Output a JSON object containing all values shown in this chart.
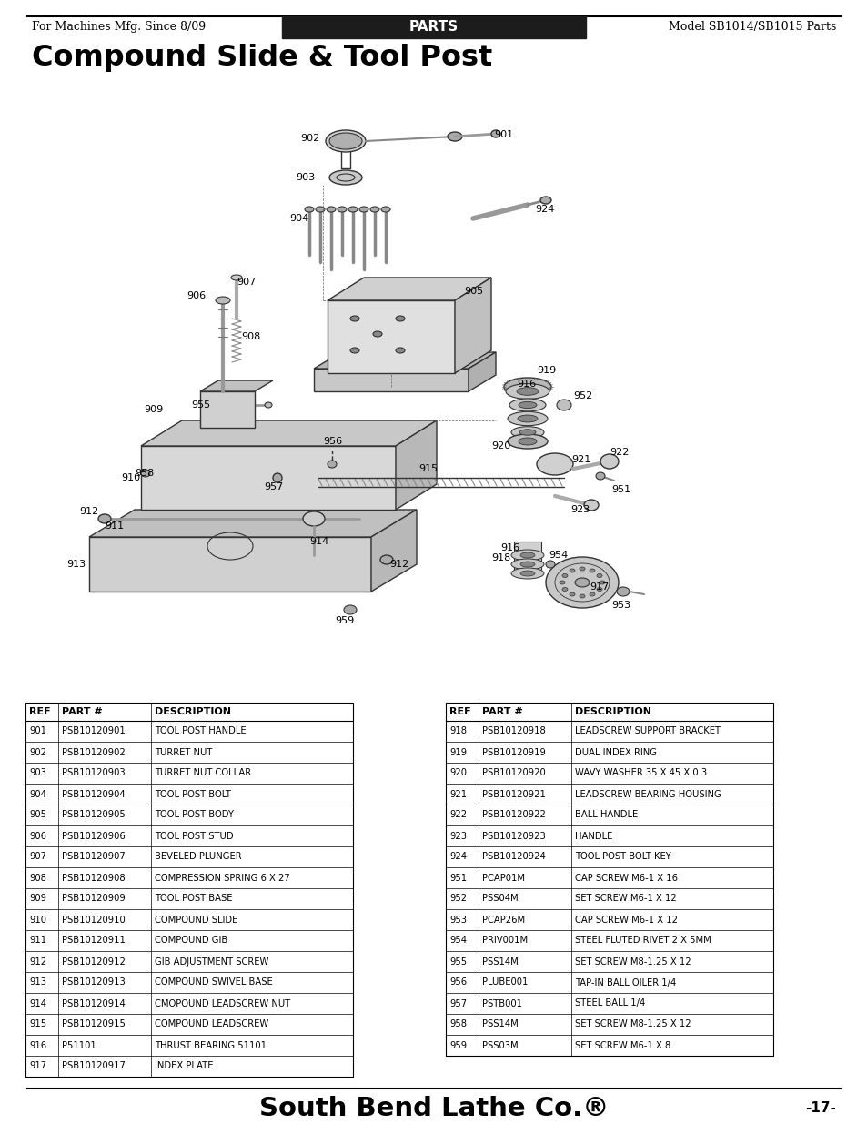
{
  "header_left": "For Machines Mfg. Since 8/09",
  "header_center": "PARTS",
  "header_right": "Model SB1014/SB1015 Parts",
  "title": "Compound Slide & Tool Post",
  "footer_center": "South Bend Lathe Co.®",
  "footer_right": "-17-",
  "col_headers": [
    "REF",
    "PART #",
    "DESCRIPTION"
  ],
  "table_left": [
    [
      "901",
      "PSB10120901",
      "TOOL POST HANDLE"
    ],
    [
      "902",
      "PSB10120902",
      "TURRET NUT"
    ],
    [
      "903",
      "PSB10120903",
      "TURRET NUT COLLAR"
    ],
    [
      "904",
      "PSB10120904",
      "TOOL POST BOLT"
    ],
    [
      "905",
      "PSB10120905",
      "TOOL POST BODY"
    ],
    [
      "906",
      "PSB10120906",
      "TOOL POST STUD"
    ],
    [
      "907",
      "PSB10120907",
      "BEVELED PLUNGER"
    ],
    [
      "908",
      "PSB10120908",
      "COMPRESSION SPRING 6 X 27"
    ],
    [
      "909",
      "PSB10120909",
      "TOOL POST BASE"
    ],
    [
      "910",
      "PSB10120910",
      "COMPOUND SLIDE"
    ],
    [
      "911",
      "PSB10120911",
      "COMPOUND GIB"
    ],
    [
      "912",
      "PSB10120912",
      "GIB ADJUSTMENT SCREW"
    ],
    [
      "913",
      "PSB10120913",
      "COMPOUND SWIVEL BASE"
    ],
    [
      "914",
      "PSB10120914",
      "CMOPOUND LEADSCREW NUT"
    ],
    [
      "915",
      "PSB10120915",
      "COMPOUND LEADSCREW"
    ],
    [
      "916",
      "P51101",
      "THRUST BEARING 51101"
    ],
    [
      "917",
      "PSB10120917",
      "INDEX PLATE"
    ]
  ],
  "table_right": [
    [
      "918",
      "PSB10120918",
      "LEADSCREW SUPPORT BRACKET"
    ],
    [
      "919",
      "PSB10120919",
      "DUAL INDEX RING"
    ],
    [
      "920",
      "PSB10120920",
      "WAVY WASHER 35 X 45 X 0.3"
    ],
    [
      "921",
      "PSB10120921",
      "LEADSCREW BEARING HOUSING"
    ],
    [
      "922",
      "PSB10120922",
      "BALL HANDLE"
    ],
    [
      "923",
      "PSB10120923",
      "HANDLE"
    ],
    [
      "924",
      "PSB10120924",
      "TOOL POST BOLT KEY"
    ],
    [
      "951",
      "PCAP01M",
      "CAP SCREW M6-1 X 16"
    ],
    [
      "952",
      "PSS04M",
      "SET SCREW M6-1 X 12"
    ],
    [
      "953",
      "PCAP26M",
      "CAP SCREW M6-1 X 12"
    ],
    [
      "954",
      "PRIV001M",
      "STEEL FLUTED RIVET 2 X 5MM"
    ],
    [
      "955",
      "PSS14M",
      "SET SCREW M8-1.25 X 12"
    ],
    [
      "956",
      "PLUBE001",
      "TAP-IN BALL OILER 1/4"
    ],
    [
      "957",
      "PSTB001",
      "STEEL BALL 1/4"
    ],
    [
      "958",
      "PSS14M",
      "SET SCREW M8-1.25 X 12"
    ],
    [
      "959",
      "PSS03M",
      "SET SCREW M6-1 X 8"
    ]
  ],
  "bg_color": "#ffffff",
  "header_bg": "#1c1c1c",
  "lw_thick": 1.5,
  "lw_med": 0.8,
  "lw_thin": 0.5
}
